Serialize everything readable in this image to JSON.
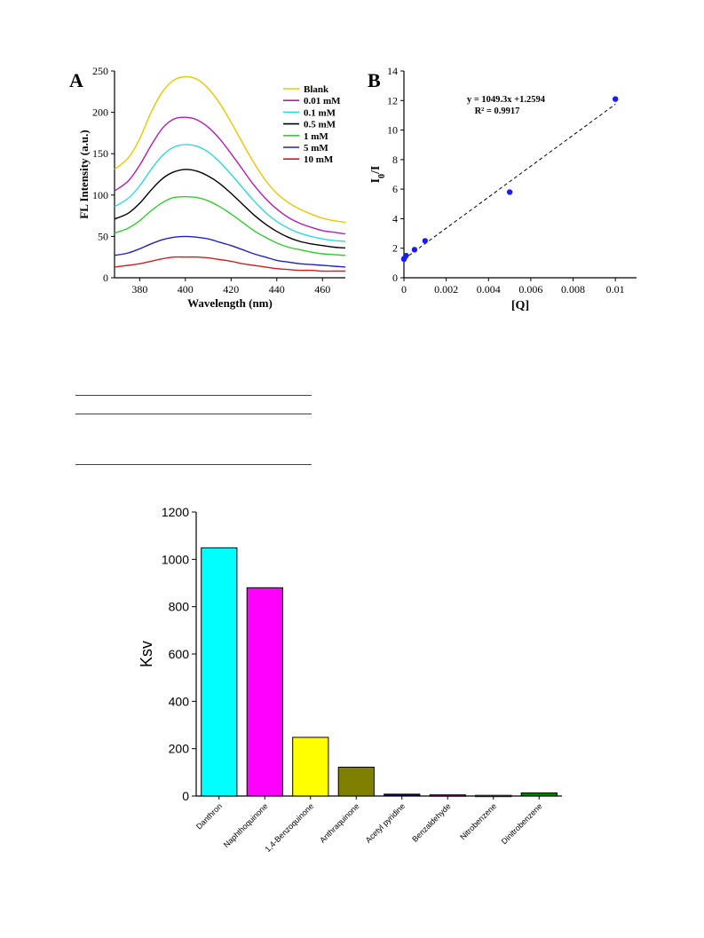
{
  "panel_a_letter": "A",
  "panel_b_letter": "B",
  "chart_data": [
    {
      "type": "line",
      "id": "panel-a",
      "xlabel": "Wavelength (nm)",
      "ylabel": "FL Intensity (a.u.)",
      "xlim": [
        369,
        470
      ],
      "ylim": [
        0,
        250
      ],
      "xticks": [
        380,
        400,
        420,
        440,
        460
      ],
      "yticks": [
        0,
        50,
        100,
        150,
        200,
        250
      ],
      "x": [
        369,
        375,
        380,
        385,
        390,
        395,
        400,
        405,
        410,
        415,
        420,
        425,
        430,
        435,
        440,
        445,
        450,
        455,
        460,
        465,
        470
      ],
      "legend_position": "top-right",
      "series": [
        {
          "name": "Blank",
          "color": "#e8c800",
          "values": [
            131,
            145,
            168,
            200,
            225,
            239,
            243,
            240,
            229,
            211,
            188,
            163,
            139,
            118,
            102,
            91,
            83,
            77,
            72,
            69,
            67
          ]
        },
        {
          "name": "0.01 mM",
          "color": "#b020b0",
          "values": [
            105,
            117,
            136,
            160,
            181,
            192,
            194,
            191,
            182,
            168,
            150,
            131,
            112,
            96,
            83,
            73,
            66,
            61,
            57,
            55,
            53
          ]
        },
        {
          "name": "0.1 mM",
          "color": "#30d8d8",
          "values": [
            86,
            96,
            111,
            131,
            148,
            158,
            161,
            159,
            152,
            140,
            125,
            109,
            93,
            79,
            68,
            60,
            54,
            50,
            47,
            45,
            44
          ]
        },
        {
          "name": "0.5 mM",
          "color": "#000000",
          "values": [
            71,
            78,
            90,
            106,
            120,
            128,
            131,
            129,
            123,
            114,
            102,
            89,
            76,
            65,
            56,
            49,
            44,
            41,
            39,
            37,
            36
          ]
        },
        {
          "name": "1 mM",
          "color": "#30cc30",
          "values": [
            54,
            60,
            69,
            81,
            91,
            97,
            98,
            97,
            93,
            86,
            77,
            67,
            57,
            49,
            42,
            37,
            34,
            31,
            29,
            28,
            27
          ]
        },
        {
          "name": "5 mM",
          "color": "#2020c0",
          "values": [
            27,
            30,
            35,
            41,
            46,
            49,
            50,
            49,
            47,
            43,
            39,
            34,
            29,
            25,
            21,
            19,
            17,
            16,
            15,
            14,
            13
          ]
        },
        {
          "name": "10 mM",
          "color": "#cc2020",
          "values": [
            13,
            15,
            17,
            20,
            23,
            25,
            25,
            25,
            24,
            22,
            20,
            17,
            15,
            13,
            11,
            10,
            9,
            9,
            8,
            8,
            8
          ]
        }
      ]
    },
    {
      "type": "scatter",
      "id": "panel-b",
      "xlabel": "[Q]",
      "ylabel_main": "I",
      "ylabel_sub": "0",
      "ylabel_tail": "/I",
      "xlim": [
        0,
        0.011
      ],
      "ylim": [
        0,
        14
      ],
      "xticks": [
        "0",
        "0.002",
        "0.004",
        "0.006",
        "0.008",
        "0.01"
      ],
      "xtick_values": [
        0,
        0.002,
        0.004,
        0.006,
        0.008,
        0.01
      ],
      "yticks": [
        0,
        2,
        4,
        6,
        8,
        10,
        12,
        14
      ],
      "x": [
        0,
        1e-05,
        0.0001,
        0.0005,
        0.001,
        0.005,
        0.01
      ],
      "y": [
        1.26,
        1.3,
        1.5,
        1.9,
        2.5,
        5.8,
        12.1
      ],
      "point_color": "#1a1aff",
      "fit": {
        "slope": 1049.3,
        "intercept": 1.2594,
        "style": "dashed"
      },
      "equation": "y = 1049.3x +1.2594",
      "r2_label": "R² = 0.9917"
    },
    {
      "type": "bar",
      "id": "panel-c",
      "ylabel": "Ksv",
      "ylim": [
        0,
        1200
      ],
      "yticks": [
        0,
        200,
        400,
        600,
        800,
        1000,
        1200
      ],
      "categories": [
        "Danthron",
        "Naphthoquinone",
        "1,4-Benzoquinone",
        "Anthraquinone",
        "Acetyl pyridine",
        "Benzaldehyde",
        "Nitrobenzene",
        "Dinitrobenzene"
      ],
      "values": [
        1049,
        880,
        248,
        122,
        8,
        5,
        3,
        13
      ],
      "colors": [
        "#00ffff",
        "#ff00ff",
        "#ffff00",
        "#808000",
        "#000080",
        "#800080",
        "#808080",
        "#008000"
      ]
    }
  ]
}
